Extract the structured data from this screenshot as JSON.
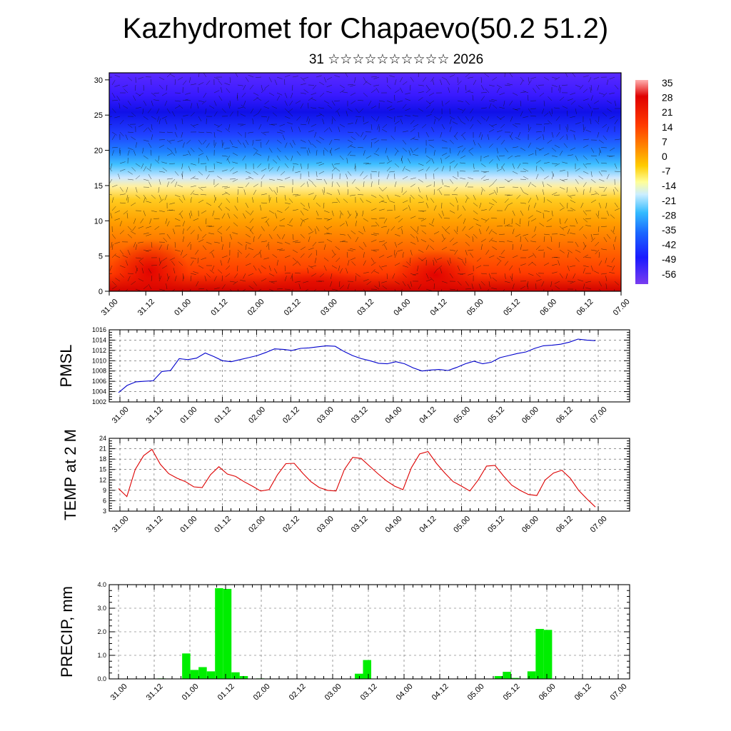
{
  "header": {
    "title": "Kazhydromet for Chapaevo(50.2 51.2)",
    "subtitle": "31 ☆☆☆☆☆☆☆☆☆☆ 2026"
  },
  "chart_data": [
    {
      "type": "heatmap",
      "name": "upper-air temperature and wind cross-section",
      "x_ticks": [
        "31.00",
        "31.12",
        "01.00",
        "01.12",
        "02.00",
        "02.12",
        "03.00",
        "03.12",
        "04.00",
        "04.12",
        "05.00",
        "05.12",
        "06.00",
        "06.12",
        "07.00"
      ],
      "y_ticks": [
        "0",
        "5",
        "10",
        "15",
        "20",
        "25",
        "30"
      ],
      "ylim": [
        0,
        31
      ],
      "colorbar_labels": [
        "35",
        "28",
        "21",
        "14",
        "7",
        "0",
        "-7",
        "-14",
        "-21",
        "-28",
        "-35",
        "-42",
        "-49",
        "-56"
      ]
    },
    {
      "type": "line",
      "ylabel": "PMSL",
      "color": "#0000cc",
      "ylim": [
        1002,
        1016
      ],
      "y_ticks": [
        "1002",
        "1004",
        "1006",
        "1008",
        "1010",
        "1012",
        "1014",
        "1016"
      ],
      "x_ticks": [
        "31.00",
        "31.12",
        "01.00",
        "01.12",
        "02.00",
        "02.12",
        "03.00",
        "03.12",
        "04.00",
        "04.12",
        "05.00",
        "05.12",
        "06.00",
        "06.12",
        "07.00"
      ],
      "values": [
        1003.8,
        1005.2,
        1005.9,
        1006.0,
        1006.1,
        1007.9,
        1008.1,
        1010.4,
        1010.2,
        1010.5,
        1011.5,
        1010.8,
        1010.0,
        1009.8,
        1010.2,
        1010.6,
        1011.0,
        1011.6,
        1012.3,
        1012.2,
        1012.0,
        1012.4,
        1012.5,
        1012.7,
        1012.9,
        1012.8,
        1011.8,
        1011.0,
        1010.4,
        1010.0,
        1009.5,
        1009.4,
        1009.8,
        1009.4,
        1008.6,
        1008.0,
        1008.2,
        1008.3,
        1008.1,
        1008.7,
        1009.4,
        1009.9,
        1009.4,
        1009.7,
        1010.6,
        1011.0,
        1011.4,
        1011.7,
        1012.4,
        1012.9,
        1013.0,
        1013.2,
        1013.6,
        1014.2,
        1014.0,
        1013.9
      ]
    },
    {
      "type": "line",
      "ylabel": "TEMP at 2 M",
      "color": "#dd0000",
      "ylim": [
        3,
        24
      ],
      "y_ticks": [
        "3",
        "6",
        "9",
        "12",
        "15",
        "18",
        "21",
        "24"
      ],
      "x_ticks": [
        "31.00",
        "31.12",
        "01.00",
        "01.12",
        "02.00",
        "02.12",
        "03.00",
        "03.12",
        "04.00",
        "04.12",
        "05.00",
        "05.12",
        "06.00",
        "06.12",
        "07.00"
      ],
      "values": [
        9.5,
        7.2,
        15.0,
        19.0,
        20.8,
        16.5,
        13.8,
        12.5,
        11.5,
        10.0,
        9.8,
        13.5,
        15.8,
        13.7,
        13.0,
        11.5,
        10.2,
        8.8,
        9.2,
        13.5,
        16.7,
        16.8,
        14.0,
        11.5,
        9.8,
        9.0,
        8.8,
        15.0,
        18.5,
        18.2,
        16.0,
        13.8,
        11.8,
        10.2,
        9.2,
        15.5,
        19.5,
        20.2,
        16.8,
        14.0,
        11.5,
        10.2,
        8.8,
        12.0,
        16.0,
        16.2,
        13.2,
        10.5,
        9.0,
        7.8,
        7.5,
        12.0,
        14.0,
        14.8,
        12.5,
        9.0,
        6.5,
        4.2
      ]
    },
    {
      "type": "bar",
      "ylabel": "PRECIP, mm",
      "color": "#00ee00",
      "ylim": [
        0,
        4
      ],
      "y_ticks": [
        "0.0",
        "1.0",
        "2.0",
        "3.0",
        "4.0"
      ],
      "x_ticks": [
        "31.00",
        "31.12",
        "01.00",
        "01.12",
        "02.00",
        "02.12",
        "03.00",
        "03.12",
        "04.00",
        "04.12",
        "05.00",
        "05.12",
        "06.00",
        "06.12",
        "07.00"
      ],
      "values": [
        0,
        0,
        0,
        0,
        0,
        0.02,
        0,
        0,
        1.08,
        0.38,
        0.5,
        0.32,
        3.85,
        3.82,
        0.28,
        0.12,
        0,
        0.02,
        0,
        0,
        0,
        0,
        0,
        0,
        0,
        0,
        0,
        0,
        0,
        0.22,
        0.8,
        0,
        0,
        0,
        0,
        0,
        0,
        0,
        0,
        0,
        0,
        0,
        0,
        0,
        0,
        0,
        0.12,
        0.3,
        0.04,
        0,
        0.32,
        2.12,
        2.08,
        0,
        0,
        0,
        0,
        0,
        0,
        0
      ]
    }
  ]
}
